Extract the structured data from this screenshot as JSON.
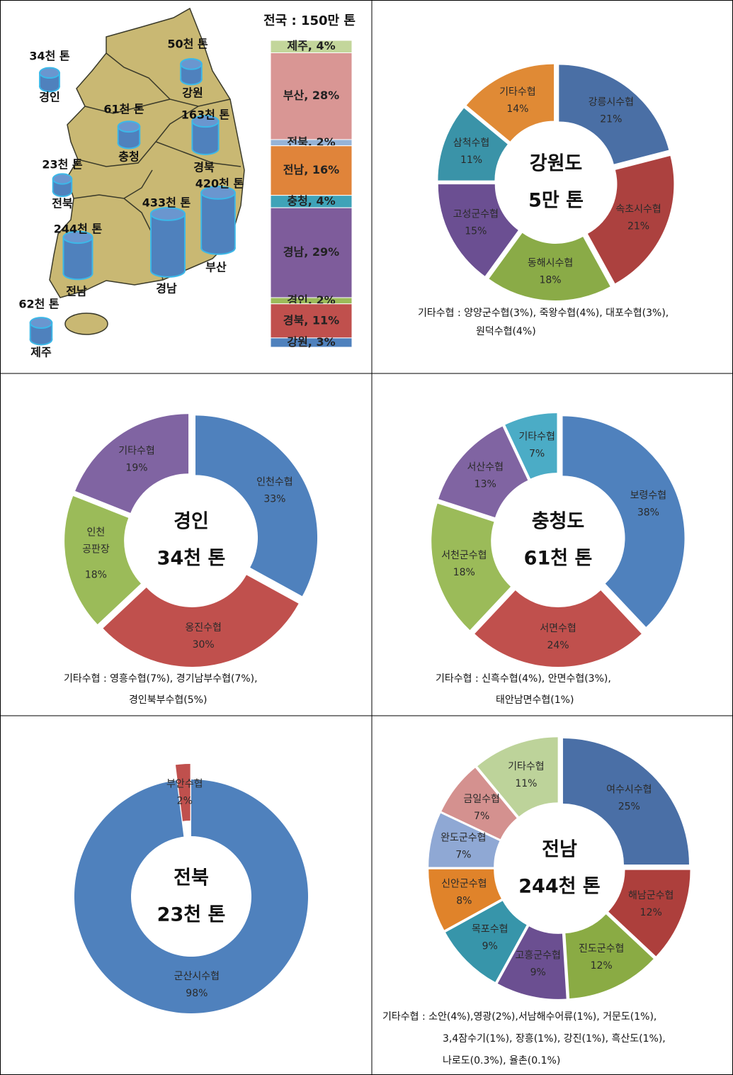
{
  "chart_data": [
    {
      "type": "map",
      "categories": [
        "경인",
        "강원",
        "충청",
        "경북",
        "전북",
        "부산",
        "경남",
        "전남",
        "제주"
      ],
      "values": [
        34,
        50,
        61,
        163,
        23,
        420,
        433,
        244,
        62
      ],
      "value_labels": [
        "34천 톤",
        "50천 톤",
        "61천 톤",
        "163천 톤",
        "23천 톤",
        "420천 톤",
        "433천 톤",
        "244천 톤",
        "62천 톤"
      ],
      "color": "#4f81bd"
    },
    {
      "type": "stacked_bar",
      "title": "전국 : 150만 톤",
      "values": [
        4,
        28,
        2,
        16,
        4,
        29,
        2,
        11,
        3
      ],
      "value_labels": [
        "제주, 4%",
        "부산, 28%",
        "전북, 2%",
        "전남, 16%",
        "충청, 4%",
        "경남, 29%",
        "경인, 2%",
        "경북, 11%",
        "강원, 3%"
      ],
      "colors": [
        "#c3d69b",
        "#d99694",
        "#95b3d7",
        "#e0843a",
        "#3fa3b8",
        "#7e5c9b",
        "#9bbb59",
        "#c0504d",
        "#4f81bd"
      ]
    },
    {
      "type": "donut",
      "title": "강원도",
      "subtitle": "5만 톤",
      "categories": [
        "강릉시수협",
        "속초시수협",
        "동해시수협",
        "고성군수협",
        "삼척수협",
        "기타수협"
      ],
      "values": [
        21,
        21,
        18,
        15,
        11,
        14
      ],
      "value_labels": [
        "21%",
        "21%",
        "18%",
        "15%",
        "11%",
        "14%"
      ],
      "colors": [
        "#4a6fa5",
        "#ac413f",
        "#8aab47",
        "#6b4f92",
        "#3a93a8",
        "#e08a35"
      ],
      "note": [
        "기타수협 : 양양군수협(3%), 죽왕수협(4%), 대포수협(3%),",
        "원덕수협(4%)"
      ]
    },
    {
      "type": "donut",
      "title": "경인",
      "subtitle": "34천 톤",
      "categories": [
        "인천수협",
        "옹진수협",
        "인천\n공판장",
        "기타수협"
      ],
      "values": [
        33,
        30,
        18,
        19
      ],
      "value_labels": [
        "33%",
        "30%",
        "18%",
        "19%"
      ],
      "colors": [
        "#4f81bd",
        "#c0504d",
        "#9bbb59",
        "#8064a2"
      ],
      "note": [
        "기타수협 : 영흥수협(7%), 경기남부수협(7%),",
        "경인북부수협(5%)"
      ]
    },
    {
      "type": "donut",
      "title": "충청도",
      "subtitle": "61천 톤",
      "categories": [
        "보령수협",
        "서면수협",
        "서천군수협",
        "서산수협",
        "기타수협"
      ],
      "values": [
        38,
        24,
        18,
        13,
        7
      ],
      "value_labels": [
        "38%",
        "24%",
        "18%",
        "13%",
        "7%"
      ],
      "colors": [
        "#4f81bd",
        "#c0504d",
        "#9bbb59",
        "#8064a2",
        "#4bacc6"
      ],
      "note": [
        "기타수협 : 신흑수협(4%), 안면수협(3%),",
        "태안남면수협(1%)"
      ]
    },
    {
      "type": "donut",
      "title": "전북",
      "subtitle": "23천 톤",
      "categories": [
        "군산시수협",
        "부안수협"
      ],
      "values": [
        98,
        2
      ],
      "value_labels": [
        "98%",
        "2%"
      ],
      "colors": [
        "#4f81bd",
        "#c0504d"
      ]
    },
    {
      "type": "donut",
      "title": "전남",
      "subtitle": "244천 톤",
      "categories": [
        "여수시수협",
        "해남군수협",
        "진도군수협",
        "고흥군수협",
        "목포수협",
        "신안군수협",
        "완도군수협",
        "금일수협",
        "기타수협"
      ],
      "values": [
        25,
        12,
        12,
        9,
        9,
        8,
        7,
        7,
        11
      ],
      "value_labels": [
        "25%",
        "12%",
        "12%",
        "9%",
        "9%",
        "8%",
        "7%",
        "7%",
        "11%"
      ],
      "colors": [
        "#4a6fa6",
        "#ad3f3c",
        "#8aab44",
        "#6b4f91",
        "#3795aa",
        "#e0832a",
        "#8fa8d4",
        "#d4918f",
        "#bdd39a"
      ],
      "note": [
        "기타수협 : 소안(4%),영광(2%),서남해수어류(1%), 거문도(1%),",
        "3,4잠수기(1%), 장흥(1%), 강진(1%), 흑산도(1%),",
        "나로도(0.3%), 율촌(0.1%)"
      ]
    }
  ]
}
